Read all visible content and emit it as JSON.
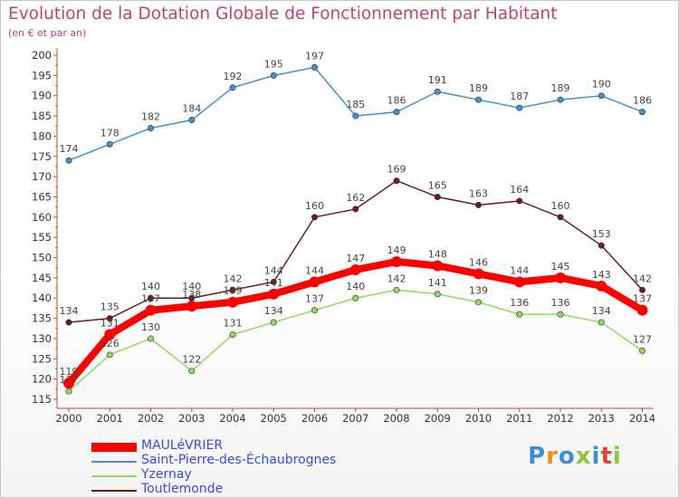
{
  "page": {
    "title": "Evolution de la Dotation Globale de Fonctionnement par Habitant",
    "subtitle": "(en € et par an)",
    "logo_text": "Proxiti"
  },
  "chart_data": {
    "type": "line",
    "title": "Evolution de la Dotation Globale de Fonctionnement par Habitant",
    "subtitle": "(en € et par an)",
    "xlabel": "",
    "ylabel": "",
    "ylim": [
      115,
      200
    ],
    "yticks": [
      115,
      120,
      125,
      130,
      135,
      140,
      145,
      150,
      155,
      160,
      165,
      170,
      175,
      180,
      185,
      190,
      195,
      200
    ],
    "grid": false,
    "legend_position": "bottom-left",
    "x": [
      "2000",
      "2001",
      "2002",
      "2003",
      "2004",
      "2005",
      "2006",
      "2007",
      "2008",
      "2009",
      "2010",
      "2011",
      "2012",
      "2013",
      "2014"
    ],
    "series": [
      {
        "name": "MAULéVRIER",
        "color": "#ff0000",
        "highlight": true,
        "values": [
          119,
          131,
          137,
          138,
          139,
          141,
          144,
          147,
          149,
          148,
          146,
          144,
          145,
          143,
          137
        ]
      },
      {
        "name": "Saint-Pierre-des-Échaubrognes",
        "color": "#4a90c8",
        "highlight": false,
        "values": [
          174,
          178,
          182,
          184,
          192,
          195,
          197,
          185,
          186,
          191,
          189,
          187,
          189,
          190,
          186
        ]
      },
      {
        "name": "Yzernay",
        "color": "#90d860",
        "highlight": false,
        "values": [
          117,
          126,
          130,
          122,
          131,
          134,
          137,
          140,
          142,
          141,
          139,
          136,
          136,
          134,
          127
        ]
      },
      {
        "name": "Toutlemonde",
        "color": "#6b1e22",
        "highlight": false,
        "values": [
          134,
          135,
          140,
          140,
          142,
          144,
          160,
          162,
          169,
          165,
          163,
          164,
          160,
          153,
          142
        ]
      }
    ]
  }
}
